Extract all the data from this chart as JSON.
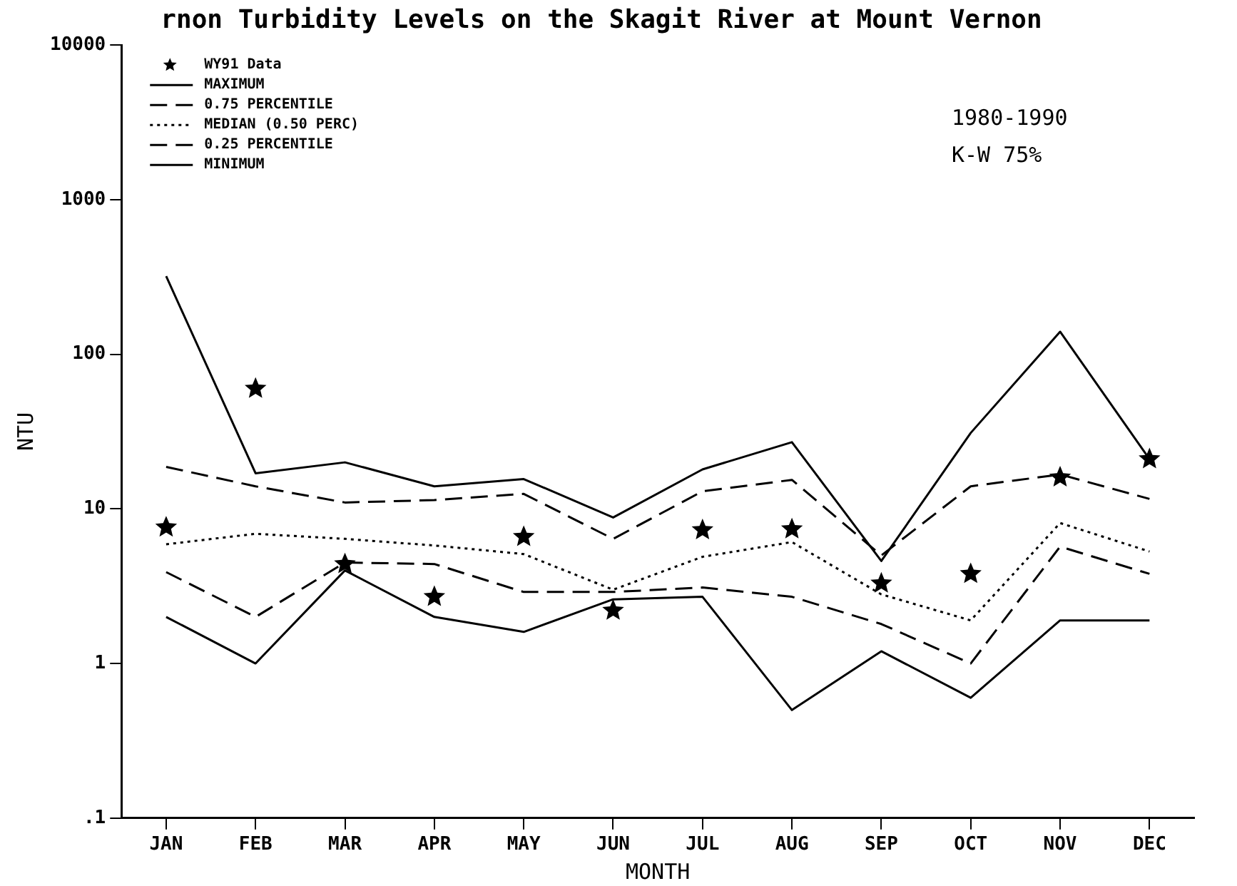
{
  "chart_data": {
    "type": "line",
    "title": "rnon Turbidity Levels on the Skagit River at Mount Vernon",
    "xlabel": "MONTH",
    "ylabel": "NTU",
    "categories": [
      "JAN",
      "FEB",
      "MAR",
      "APR",
      "MAY",
      "JUN",
      "JUL",
      "AUG",
      "SEP",
      "OCT",
      "NOV",
      "DEC"
    ],
    "series": [
      {
        "name": "WY91 Data",
        "type": "scatter",
        "marker": "star",
        "color": "#000000",
        "values": [
          7.6,
          60,
          4.4,
          2.7,
          6.6,
          2.2,
          7.3,
          7.4,
          3.3,
          3.8,
          16,
          21
        ]
      },
      {
        "name": "MAXIMUM",
        "line_style": "solid",
        "color": "#000000",
        "values": [
          320,
          17,
          20,
          14,
          15.6,
          8.8,
          18,
          27,
          4.6,
          31,
          140,
          21
        ]
      },
      {
        "name": "0.75 PERCENTILE",
        "line_style": "dashed",
        "color": "#000000",
        "values": [
          18.7,
          14,
          11,
          11.4,
          12.5,
          6.4,
          13,
          15.4,
          5,
          14,
          16.7,
          11.6
        ]
      },
      {
        "name": "MEDIAN (0.50 PERC)",
        "line_style": "dotted",
        "color": "#000000",
        "values": [
          5.9,
          6.9,
          6.4,
          5.8,
          5.1,
          3.0,
          4.9,
          6.1,
          2.8,
          1.9,
          8.1,
          5.3
        ]
      },
      {
        "name": "0.25 PERCENTILE",
        "line_style": "dashed",
        "color": "#000000",
        "values": [
          3.9,
          2.0,
          4.5,
          4.4,
          2.9,
          2.9,
          3.1,
          2.7,
          1.8,
          1.0,
          5.7,
          3.8
        ]
      },
      {
        "name": "MINIMUM",
        "line_style": "solid",
        "color": "#000000",
        "values": [
          2.0,
          1.0,
          4.0,
          2.0,
          1.6,
          2.6,
          2.7,
          0.5,
          1.2,
          0.6,
          1.9,
          1.9
        ]
      }
    ],
    "log": "y",
    "ylim": [
      0.1,
      10000
    ],
    "yticks": [
      {
        "value": 0.1,
        "label": ".1"
      },
      1,
      10,
      100,
      1000,
      10000
    ],
    "legend": "top left",
    "annotations": [
      "1980-1990",
      "K-W 75%"
    ]
  }
}
